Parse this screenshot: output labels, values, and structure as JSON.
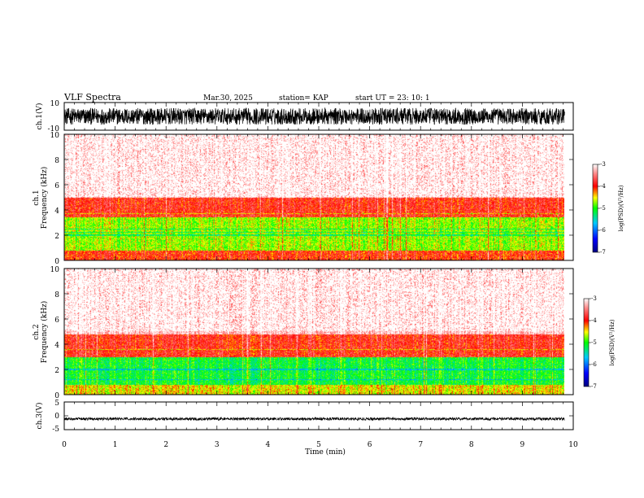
{
  "header": {
    "title": "VLF Spectra",
    "date": "Mar.30, 2025",
    "station": "station= KAP",
    "start": "start  UT =   23: 10: 1"
  },
  "chart_data": [
    {
      "type": "line",
      "panel": "ch1-waveform",
      "ylabel": "ch.1(V)",
      "ylim": [
        -10,
        10
      ],
      "yticks": [
        "10",
        "-10"
      ],
      "xlim": [
        0,
        10
      ],
      "data_extent": [
        0,
        9.83
      ],
      "amplitude_band": [
        -6,
        6
      ],
      "color": "#000000"
    },
    {
      "type": "heatmap",
      "panel": "ch1-spectrogram",
      "ylabel_top": "ch.1",
      "ylabel": "Frequency (kHz)",
      "ylim": [
        0,
        10
      ],
      "yticks": [
        "0",
        "2",
        "4",
        "6",
        "8",
        "10"
      ],
      "xlim": [
        0,
        10
      ],
      "data_extent": [
        0,
        9.83
      ],
      "levels_log_psd": [
        {
          "freq_khz": [
            0.0,
            0.8
          ],
          "level": -4.0
        },
        {
          "freq_khz": [
            0.8,
            3.4
          ],
          "level": -4.7
        },
        {
          "freq_khz": [
            3.4,
            5.0
          ],
          "level": -3.9
        },
        {
          "freq_khz": [
            5.0,
            10.0
          ],
          "level": -3.2
        }
      ],
      "lines_khz": [
        2.0,
        2.2,
        2.5,
        3.7
      ],
      "colorbar": {
        "min": -7,
        "max": -3,
        "ticks": [
          "-3",
          "-4",
          "-5",
          "-6",
          "-7"
        ],
        "label": "log(PSD)(V²/Hz)"
      }
    },
    {
      "type": "heatmap",
      "panel": "ch2-spectrogram",
      "ylabel_top": "ch.2",
      "ylabel": "Frequency (kHz)",
      "ylim": [
        0,
        10
      ],
      "yticks": [
        "0",
        "2",
        "4",
        "6",
        "8",
        "10"
      ],
      "xlim": [
        0,
        10
      ],
      "data_extent": [
        0,
        9.83
      ],
      "levels_log_psd": [
        {
          "freq_khz": [
            0.0,
            0.8
          ],
          "level": -4.5
        },
        {
          "freq_khz": [
            0.8,
            3.0
          ],
          "level": -5.1
        },
        {
          "freq_khz": [
            3.0,
            4.8
          ],
          "level": -3.9
        },
        {
          "freq_khz": [
            4.8,
            10.0
          ],
          "level": -3.2
        }
      ],
      "lines_khz": [
        1.2,
        2.0,
        3.6
      ],
      "colorbar": {
        "min": -7,
        "max": -3,
        "ticks": [
          "-3",
          "-4",
          "-5",
          "-6",
          "-7"
        ],
        "label": "log(PSD)(V²/Hz)"
      }
    },
    {
      "type": "line",
      "panel": "ch3-waveform",
      "ylabel": "ch.3(V)",
      "ylim": [
        -5,
        5
      ],
      "yticks": [
        "5",
        "0",
        "-5"
      ],
      "xlim": [
        0,
        10
      ],
      "data_extent": [
        0,
        9.83
      ],
      "amplitude_band": [
        -1.6,
        -0.6
      ],
      "color": "#000000"
    }
  ],
  "xaxis": {
    "label": "Time (min)",
    "range": [
      0,
      10
    ],
    "ticks": [
      "0",
      "1",
      "2",
      "3",
      "4",
      "5",
      "6",
      "7",
      "8",
      "9",
      "10"
    ]
  }
}
